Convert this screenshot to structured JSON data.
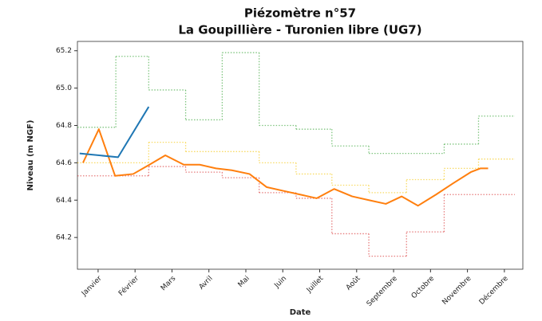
{
  "chart_data": {
    "type": "line",
    "title": "Piézomètre n°57",
    "subtitle": "La Goupillière - Turonien libre (UG7)",
    "xlabel": "Date",
    "ylabel": "Niveau (m NGF)",
    "xlim": [
      -0.56,
      11.5
    ],
    "xticks": [
      {
        "value": 0,
        "label": "Janvier"
      },
      {
        "value": 1,
        "label": "Février"
      },
      {
        "value": 2,
        "label": "Mars"
      },
      {
        "value": 3,
        "label": "Avril"
      },
      {
        "value": 4,
        "label": "Mai"
      },
      {
        "value": 5,
        "label": "Juin"
      },
      {
        "value": 6,
        "label": "Juillet"
      },
      {
        "value": 7,
        "label": "Août"
      },
      {
        "value": 8,
        "label": "Septembre"
      },
      {
        "value": 9,
        "label": "Octobre"
      },
      {
        "value": 10,
        "label": "Novembre"
      },
      {
        "value": 11,
        "label": "Décembre"
      }
    ],
    "ylim": [
      64.03,
      65.25
    ],
    "yticks": [
      64.2,
      64.4,
      64.6,
      64.8,
      {
        "value": 65,
        "label": "65.0"
      },
      65.2
    ],
    "series": [
      {
        "color": "#2ca02c",
        "linestyle": "dotted",
        "drawstyle": "steps-post",
        "x": [
          -0.56,
          0.48,
          1.37,
          2.37,
          3.36,
          4.36,
          5.36,
          6.33,
          7.33,
          9.37,
          10.3,
          11.28
        ],
        "values": [
          64.79,
          65.17,
          64.99,
          64.83,
          65.19,
          64.8,
          64.78,
          64.69,
          64.65,
          64.7,
          64.85,
          64.85
        ]
      },
      {
        "color": "#d62728",
        "linestyle": "dotted",
        "drawstyle": "steps-post",
        "x": [
          -0.56,
          1.37,
          2.37,
          3.36,
          4.36,
          5.36,
          6.33,
          7.33,
          8.35,
          9.37,
          11.28
        ],
        "values": [
          64.53,
          64.58,
          64.55,
          64.52,
          64.44,
          64.41,
          64.22,
          64.1,
          64.23,
          64.43,
          64.43
        ]
      },
      {
        "color": "#f5c400",
        "linestyle": "dotted",
        "drawstyle": "steps-post",
        "x": [
          -0.56,
          1.37,
          2.37,
          4.36,
          5.36,
          6.33,
          7.33,
          8.35,
          9.37,
          10.3,
          11.28
        ],
        "values": [
          64.6,
          64.71,
          64.66,
          64.6,
          64.54,
          64.48,
          64.44,
          64.51,
          64.57,
          64.62,
          64.62
        ]
      },
      {
        "color": "#ff7f0e",
        "linestyle": "solid",
        "drawstyle": "default",
        "x": [
          -0.41,
          0.02,
          0.46,
          0.95,
          1.39,
          1.82,
          2.32,
          2.75,
          3.19,
          3.62,
          4.1,
          4.56,
          5.01,
          5.47,
          5.92,
          6.39,
          6.88,
          7.33,
          7.79,
          8.22,
          8.66,
          9.15,
          9.61,
          10.09,
          10.35,
          10.56
        ],
        "values": [
          64.6,
          64.78,
          64.53,
          64.54,
          64.59,
          64.64,
          64.59,
          64.59,
          64.57,
          64.56,
          64.54,
          64.47,
          64.45,
          64.43,
          64.41,
          64.46,
          64.42,
          64.4,
          64.38,
          64.42,
          64.37,
          64.43,
          64.49,
          64.55,
          64.57,
          64.57
        ]
      },
      {
        "color": "#1f77b4",
        "linestyle": "solid",
        "drawstyle": "default",
        "x": [
          -0.5,
          0.54,
          1.37
        ],
        "values": [
          64.65,
          64.63,
          64.9
        ]
      }
    ]
  }
}
